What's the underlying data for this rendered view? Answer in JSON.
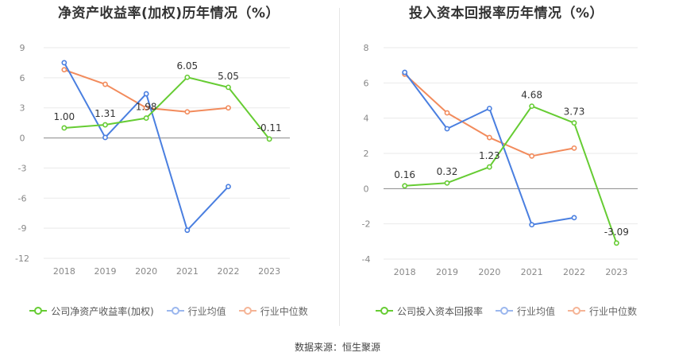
{
  "source_label": "数据来源：恒生聚源",
  "chart_data": [
    {
      "type": "line",
      "title": "净资产收益率(加权)历年情况（%）",
      "categories": [
        "2018",
        "2019",
        "2020",
        "2021",
        "2022",
        "2023"
      ],
      "yticks": [
        9,
        6,
        3,
        0,
        -3,
        -6,
        -9,
        -12
      ],
      "ylim": [
        -12,
        9
      ],
      "series": [
        {
          "name": "公司净资产收益率(加权)",
          "color": "#66cc33",
          "values": [
            1.0,
            1.31,
            1.98,
            6.05,
            5.05,
            -0.11
          ],
          "labels": [
            "1.00",
            "1.31",
            "1.98",
            "6.05",
            "5.05",
            "-0.11"
          ]
        },
        {
          "name": "行业均值",
          "color": "#4a7fe0",
          "values": [
            7.5,
            0.05,
            4.4,
            -9.2,
            -4.85,
            null
          ]
        },
        {
          "name": "行业中位数",
          "color": "#f28b5c",
          "values": [
            6.8,
            5.35,
            3.0,
            2.6,
            3.0,
            null
          ]
        }
      ]
    },
    {
      "type": "line",
      "title": "投入资本回报率历年情况（%）",
      "categories": [
        "2018",
        "2019",
        "2020",
        "2021",
        "2022",
        "2023"
      ],
      "yticks": [
        8,
        6,
        4,
        2,
        0,
        -2,
        -4
      ],
      "ylim": [
        -4,
        8
      ],
      "series": [
        {
          "name": "公司投入资本回报率",
          "color": "#66cc33",
          "values": [
            0.16,
            0.32,
            1.23,
            4.68,
            3.73,
            -3.09
          ],
          "labels": [
            "0.16",
            "0.32",
            "1.23",
            "4.68",
            "3.73",
            "-3.09"
          ]
        },
        {
          "name": "行业均值",
          "color": "#4a7fe0",
          "values": [
            6.6,
            3.4,
            4.55,
            -2.05,
            -1.65,
            null
          ]
        },
        {
          "name": "行业中位数",
          "color": "#f28b5c",
          "values": [
            6.5,
            4.3,
            2.9,
            1.85,
            2.3,
            null
          ]
        }
      ]
    }
  ]
}
